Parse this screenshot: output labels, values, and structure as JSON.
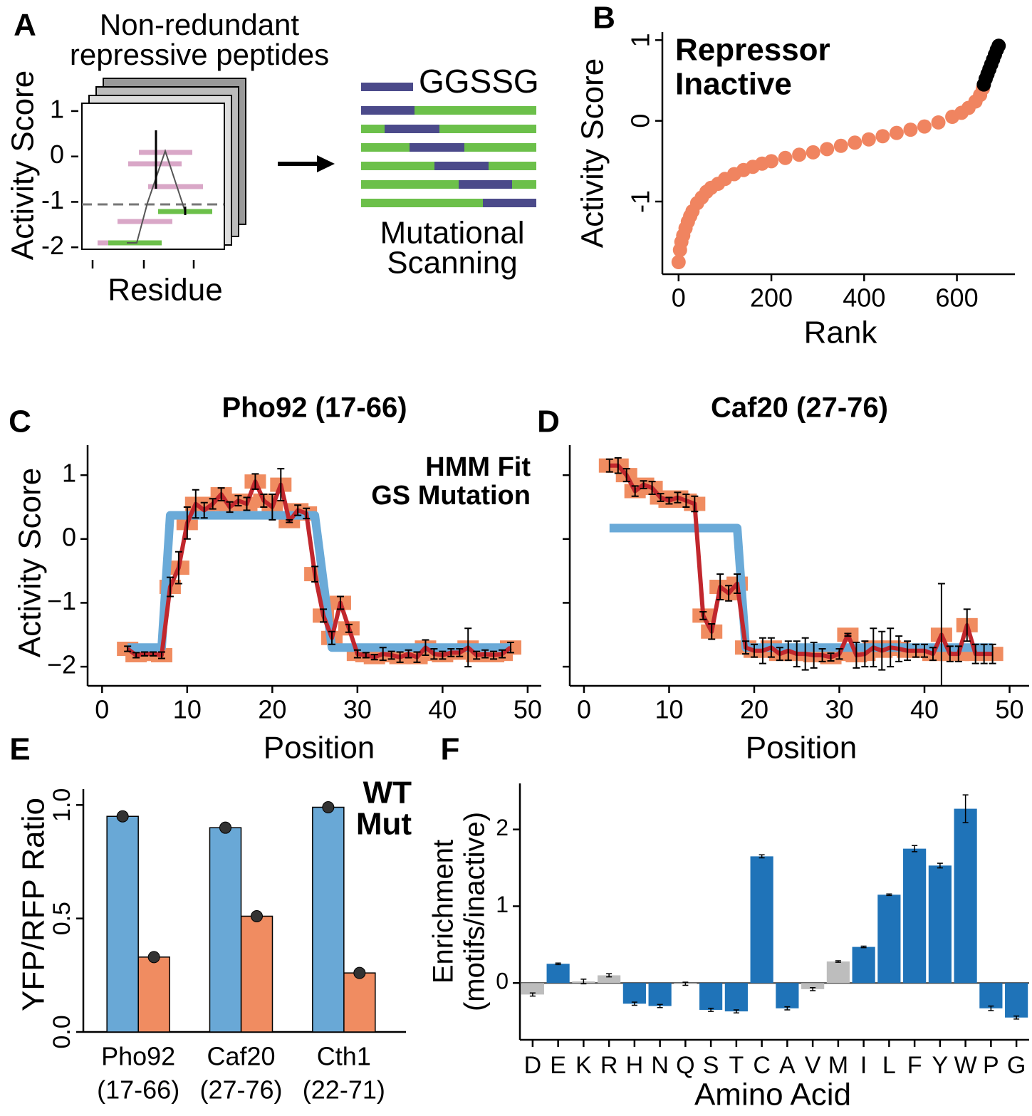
{
  "panel_labels": [
    "A",
    "B",
    "C",
    "D",
    "E",
    "F"
  ],
  "schematic": {
    "title": [
      "Non-redundant",
      "repressive peptides"
    ],
    "ylabel": "Activity Score",
    "xlabel": "Residue",
    "ylim": [
      -2.2,
      1.25
    ],
    "yticks": [
      1,
      0,
      -1,
      -2
    ],
    "linker": "GGSSG",
    "caption": [
      "Mutational",
      "Scanning"
    ]
  },
  "chart_data": [
    {
      "type": "scatter",
      "xlabel": "Rank",
      "ylabel": "Activity Score",
      "xlim": [
        -35,
        725
      ],
      "ylim": [
        -1.9,
        1.1
      ],
      "xticks": [
        0,
        200,
        400,
        600
      ],
      "yticks": [
        -1,
        0,
        1
      ],
      "legend": "top-left",
      "series": [
        {
          "name": "Repressor",
          "color": "#f08460",
          "x": [
            0,
            3,
            6,
            10,
            15,
            20,
            25,
            30,
            40,
            50,
            60,
            70,
            85,
            100,
            120,
            140,
            160,
            180,
            200,
            230,
            260,
            290,
            320,
            350,
            380,
            410,
            440,
            470,
            500,
            530,
            560,
            590,
            610,
            625,
            640,
            650,
            656
          ],
          "values": [
            -1.75,
            -1.6,
            -1.5,
            -1.42,
            -1.33,
            -1.25,
            -1.18,
            -1.12,
            -1.02,
            -0.95,
            -0.88,
            -0.83,
            -0.78,
            -0.72,
            -0.66,
            -0.61,
            -0.57,
            -0.53,
            -0.5,
            -0.46,
            -0.42,
            -0.39,
            -0.35,
            -0.31,
            -0.27,
            -0.23,
            -0.19,
            -0.15,
            -0.11,
            -0.07,
            -0.02,
            0.05,
            0.1,
            0.16,
            0.24,
            0.32,
            0.4
          ]
        },
        {
          "name": "Inactive",
          "color": "#000000",
          "x": [
            658,
            662,
            666,
            670,
            674,
            678,
            682,
            686,
            690
          ],
          "values": [
            0.45,
            0.52,
            0.58,
            0.64,
            0.7,
            0.76,
            0.82,
            0.88,
            0.93
          ]
        }
      ]
    },
    {
      "type": "line",
      "title": "Pho92 (17-66)",
      "xlabel": "Position",
      "ylabel": "Activity Score",
      "xlim": [
        -1.7,
        51.6
      ],
      "ylim": [
        -2.3,
        1.47
      ],
      "xticks": [
        0,
        10,
        20,
        30,
        40,
        50
      ],
      "yticks": [
        {
          "value": -2,
          "label": "−2"
        },
        {
          "value": -1,
          "label": "−1"
        },
        0,
        1
      ],
      "legend": "top-right",
      "series": [
        {
          "name": "HMM Fit",
          "color": "#6aaad8",
          "x": [
            3,
            7,
            8,
            25,
            27,
            48
          ],
          "values": [
            -1.7,
            -1.7,
            0.37,
            0.37,
            -1.7,
            -1.7
          ]
        },
        {
          "name": "GS Mutation",
          "color": "#f08c60",
          "line_color": "#c1272d",
          "x": [
            3,
            4,
            5,
            6,
            7,
            8,
            9,
            10,
            11,
            12,
            13,
            14,
            15,
            16,
            17,
            18,
            19,
            20,
            21,
            22,
            23,
            24,
            25,
            26,
            27,
            28,
            29,
            30,
            31,
            32,
            33,
            34,
            35,
            36,
            37,
            38,
            39,
            40,
            41,
            42,
            43,
            44,
            45,
            46,
            47,
            48
          ],
          "values": [
            -1.72,
            -1.82,
            -1.8,
            -1.8,
            -1.82,
            -0.75,
            -0.45,
            0.25,
            0.55,
            0.45,
            0.55,
            0.7,
            0.5,
            0.6,
            0.55,
            0.9,
            0.6,
            0.5,
            0.85,
            0.28,
            0.45,
            0.4,
            -0.55,
            -1.2,
            -1.55,
            -1.0,
            -1.4,
            -1.8,
            -1.82,
            -1.85,
            -1.8,
            -1.82,
            -1.85,
            -1.8,
            -1.85,
            -1.7,
            -1.8,
            -1.82,
            -1.78,
            -1.78,
            -1.7,
            -1.82,
            -1.8,
            -1.82,
            -1.8,
            -1.7
          ],
          "errors": [
            0.04,
            0.04,
            0.03,
            0.03,
            0.05,
            0.15,
            0.25,
            0.25,
            0.22,
            0.12,
            0.08,
            0.1,
            0.08,
            0.08,
            0.1,
            0.12,
            0.1,
            0.2,
            0.25,
            0.02,
            0.08,
            0.08,
            0.12,
            0.1,
            0.1,
            0.1,
            0.06,
            0.06,
            0.04,
            0.04,
            0.1,
            0.06,
            0.08,
            0.06,
            0.08,
            0.12,
            0.08,
            0.06,
            0.06,
            0.06,
            0.3,
            0.06,
            0.06,
            0.06,
            0.06,
            0.08
          ]
        }
      ]
    },
    {
      "type": "line",
      "title": "Caf20 (27-76)",
      "xlabel": "Position",
      "xlim": [
        -1.67,
        52.3
      ],
      "ylim": [
        -2.3,
        1.47
      ],
      "xticks": [
        0,
        10,
        20,
        30,
        40,
        50
      ],
      "yticks": [
        -2,
        -1,
        0,
        1
      ],
      "ytick_labels": false,
      "series": [
        {
          "color": "#6aaad8",
          "x": [
            3,
            18,
            19,
            48
          ],
          "values": [
            0.17,
            0.17,
            -1.7,
            -1.7
          ]
        },
        {
          "color": "#f08c60",
          "line_color": "#c1272d",
          "x": [
            3,
            4,
            5,
            6,
            7,
            8,
            9,
            10,
            11,
            12,
            13,
            14,
            15,
            16,
            17,
            18,
            19,
            20,
            21,
            22,
            23,
            24,
            25,
            26,
            27,
            28,
            29,
            30,
            31,
            32,
            33,
            34,
            35,
            36,
            37,
            38,
            39,
            40,
            41,
            42,
            43,
            44,
            45,
            46,
            47,
            48
          ],
          "values": [
            1.15,
            1.15,
            1.0,
            0.75,
            0.85,
            0.8,
            0.65,
            0.6,
            0.65,
            0.6,
            0.55,
            -1.2,
            -1.45,
            -0.75,
            -0.85,
            -0.7,
            -1.7,
            -1.75,
            -1.75,
            -1.7,
            -1.8,
            -1.75,
            -1.8,
            -1.8,
            -1.82,
            -1.82,
            -1.85,
            -1.8,
            -1.5,
            -1.82,
            -1.8,
            -1.7,
            -1.75,
            -1.7,
            -1.72,
            -1.75,
            -1.75,
            -1.75,
            -1.8,
            -1.5,
            -1.8,
            -1.8,
            -1.35,
            -1.8,
            -1.8,
            -1.8
          ],
          "errors": [
            0.1,
            0.12,
            0.1,
            0.08,
            0.06,
            0.1,
            0.06,
            0.05,
            0.08,
            0.1,
            0.12,
            0.06,
            0.12,
            0.2,
            0.12,
            0.15,
            0.1,
            0.1,
            0.2,
            0.15,
            0.1,
            0.15,
            0.2,
            0.25,
            0.2,
            0.1,
            0.06,
            0.08,
            0.02,
            0.2,
            0.2,
            0.3,
            0.3,
            0.3,
            0.2,
            0.15,
            0.1,
            0.1,
            0.1,
            0.8,
            0.12,
            0.12,
            0.25,
            0.15,
            0.15,
            0.15
          ]
        }
      ]
    },
    {
      "type": "grouped-bar",
      "ylabel": "YFP/RFP Ratio",
      "categories": [
        [
          "Pho92",
          "(17-66)"
        ],
        [
          "Caf20",
          "(27-76)"
        ],
        [
          "Cth1",
          "(22-71)"
        ]
      ],
      "ylim": [
        0,
        1.07
      ],
      "yticks": [
        {
          "value": 0,
          "label": "0.0"
        },
        {
          "value": 0.5,
          "label": "0.5"
        },
        {
          "value": 1,
          "label": "1.0"
        }
      ],
      "legend": "top-right",
      "series": [
        {
          "name": "WT",
          "color": "#f08c61",
          "values": [
            0.33,
            0.51,
            0.26
          ]
        },
        {
          "name": "Mut",
          "color": "#69a8d6",
          "values": [
            0.95,
            0.9,
            0.99
          ]
        }
      ]
    },
    {
      "type": "bar",
      "xlabel": "Amino Acid",
      "ylabel": [
        "Enrichment",
        "(motifs/inactive)"
      ],
      "categories": [
        "D",
        "E",
        "K",
        "R",
        "H",
        "N",
        "Q",
        "S",
        "T",
        "C",
        "A",
        "V",
        "M",
        "I",
        "L",
        "F",
        "Y",
        "W",
        "P",
        "G"
      ],
      "values": [
        -0.15,
        0.25,
        0.02,
        0.1,
        -0.27,
        -0.3,
        -0.01,
        -0.35,
        -0.37,
        1.65,
        -0.33,
        -0.08,
        0.28,
        0.47,
        1.15,
        1.75,
        1.53,
        2.27,
        -0.33,
        -0.45
      ],
      "errors": [
        0.02,
        0.01,
        0.03,
        0.02,
        0.02,
        0.02,
        0.02,
        0.02,
        0.02,
        0.02,
        0.02,
        0.02,
        0.01,
        0.01,
        0.01,
        0.04,
        0.03,
        0.18,
        0.03,
        0.02
      ],
      "colors": [
        "#bdbdbd",
        "#1f73b8",
        "#bdbdbd",
        "#bdbdbd",
        "#1f73b8",
        "#1f73b8",
        "#bdbdbd",
        "#1f73b8",
        "#1f73b8",
        "#1f73b8",
        "#1f73b8",
        "#bdbdbd",
        "#bdbdbd",
        "#1f73b8",
        "#1f73b8",
        "#1f73b8",
        "#1f73b8",
        "#1f73b8",
        "#1f73b8",
        "#1f73b8"
      ],
      "ylim": [
        -0.74,
        2.6
      ],
      "yticks": [
        0,
        1,
        2
      ]
    }
  ]
}
